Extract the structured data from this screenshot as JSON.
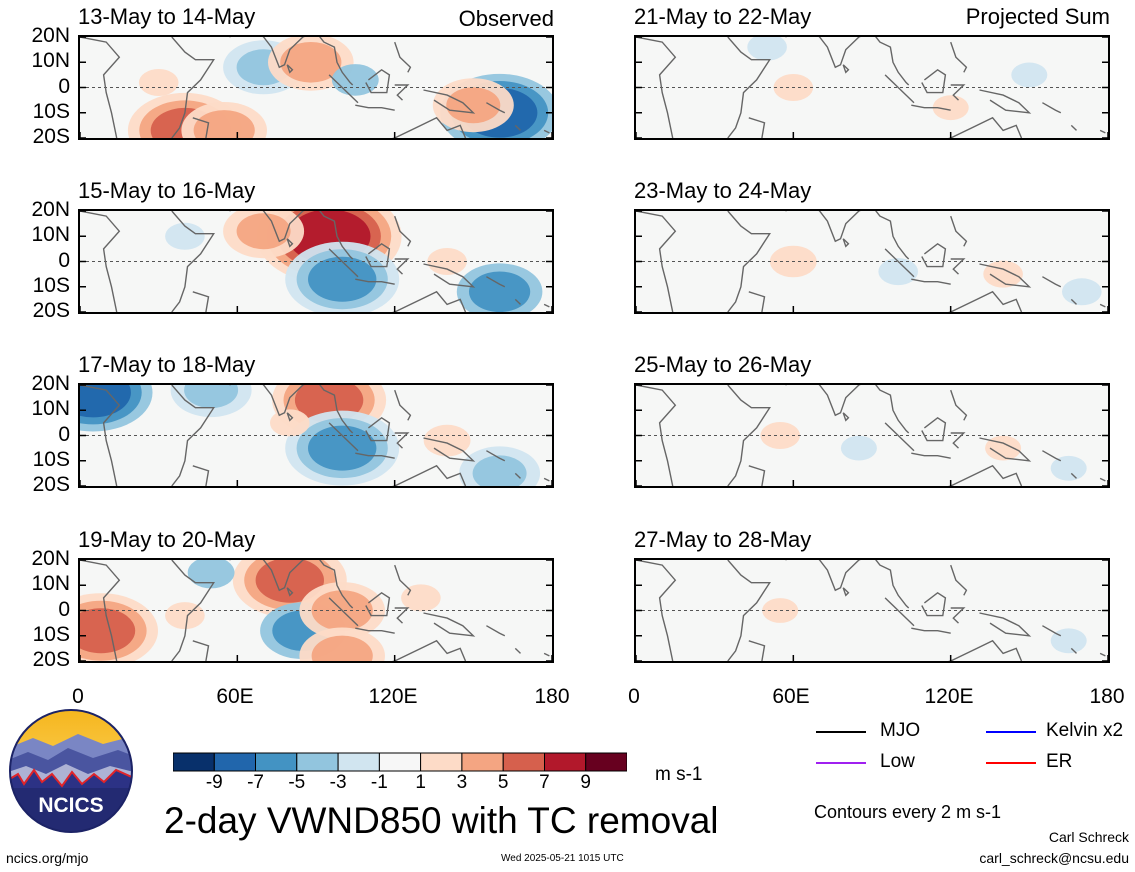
{
  "figure": {
    "title": "2-day VWND850 with TC removal",
    "units": "m s-1",
    "contour_note": "Contours every 2 m s-1",
    "author": "Carl Schreck",
    "email": "carl_schreck@ncsu.edu",
    "website": "ncics.org/mjo",
    "timestamp": "Wed 2025-05-21 1015 UTC",
    "logo_text": "NCICS"
  },
  "columns": {
    "left_label": "Observed",
    "right_label": "Projected Sum"
  },
  "lat_ticks": [
    "20N",
    "10N",
    "0",
    "10S",
    "20S"
  ],
  "lon_ticks": [
    "0",
    "60E",
    "120E",
    "180"
  ],
  "colorbar": {
    "ticks": [
      "-9",
      "-7",
      "-5",
      "-3",
      "-1",
      "1",
      "3",
      "5",
      "7",
      "9"
    ],
    "colors": [
      "#08306b",
      "#2166ac",
      "#4393c3",
      "#92c5de",
      "#d1e5f0",
      "#f7f7f7",
      "#fddbc7",
      "#f4a582",
      "#d6604d",
      "#b2182b",
      "#67001f"
    ]
  },
  "legend": [
    {
      "label": "MJO",
      "color": "#000000"
    },
    {
      "label": "Kelvin x2",
      "color": "#0000ff"
    },
    {
      "label": "Low",
      "color": "#a020f0"
    },
    {
      "label": "ER",
      "color": "#ff0000"
    }
  ],
  "chart_data": {
    "type": "heatmap",
    "variable": "2-day VWND850 with TC removal",
    "units": "m s-1",
    "x_range": [
      0,
      180
    ],
    "y_range": [
      -20,
      20
    ],
    "panels": [
      {
        "column": "Observed",
        "period": "13-May to 14-May",
        "anomalies": [
          {
            "lon": 40,
            "lat": -17,
            "v": 6
          },
          {
            "lon": 55,
            "lat": -17,
            "v": 5
          },
          {
            "lon": 70,
            "lat": 8,
            "v": -4
          },
          {
            "lon": 88,
            "lat": 10,
            "v": 5
          },
          {
            "lon": 105,
            "lat": 3,
            "v": -3
          },
          {
            "lon": 160,
            "lat": -10,
            "v": -7
          },
          {
            "lon": 150,
            "lat": -7,
            "v": 4
          },
          {
            "lon": 30,
            "lat": 2,
            "v": 2
          }
        ]
      },
      {
        "column": "Projected Sum",
        "period": "21-May to 22-May",
        "anomalies": [
          {
            "lon": 60,
            "lat": 0,
            "v": 2
          },
          {
            "lon": 50,
            "lat": 16,
            "v": -2
          },
          {
            "lon": 150,
            "lat": 5,
            "v": -1.5
          },
          {
            "lon": 120,
            "lat": -8,
            "v": 1.5
          }
        ]
      },
      {
        "column": "Observed",
        "period": "15-May to 16-May",
        "anomalies": [
          {
            "lon": 95,
            "lat": 10,
            "v": 8
          },
          {
            "lon": 100,
            "lat": -7,
            "v": -6
          },
          {
            "lon": 160,
            "lat": -12,
            "v": -5
          },
          {
            "lon": 70,
            "lat": 12,
            "v": 4
          },
          {
            "lon": 140,
            "lat": 0,
            "v": 2
          },
          {
            "lon": 40,
            "lat": 10,
            "v": -2
          }
        ]
      },
      {
        "column": "Projected Sum",
        "period": "23-May to 24-May",
        "anomalies": [
          {
            "lon": 60,
            "lat": 0,
            "v": 3
          },
          {
            "lon": 100,
            "lat": -4,
            "v": -2
          },
          {
            "lon": 140,
            "lat": -5,
            "v": 2
          },
          {
            "lon": 170,
            "lat": -12,
            "v": -2
          }
        ]
      },
      {
        "column": "Observed",
        "period": "17-May to 18-May",
        "anomalies": [
          {
            "lon": 5,
            "lat": 17,
            "v": -7
          },
          {
            "lon": 95,
            "lat": 14,
            "v": 6
          },
          {
            "lon": 100,
            "lat": -5,
            "v": -6
          },
          {
            "lon": 140,
            "lat": -2,
            "v": 3
          },
          {
            "lon": 160,
            "lat": -15,
            "v": -4
          },
          {
            "lon": 50,
            "lat": 18,
            "v": -4
          },
          {
            "lon": 80,
            "lat": 5,
            "v": 2
          }
        ]
      },
      {
        "column": "Projected Sum",
        "period": "25-May to 26-May",
        "anomalies": [
          {
            "lon": 55,
            "lat": 0,
            "v": 2
          },
          {
            "lon": 85,
            "lat": -5,
            "v": -1.5
          },
          {
            "lon": 140,
            "lat": -5,
            "v": 1.5
          },
          {
            "lon": 165,
            "lat": -13,
            "v": -1.5
          }
        ]
      },
      {
        "column": "Observed",
        "period": "19-May to 20-May",
        "anomalies": [
          {
            "lon": 8,
            "lat": -8,
            "v": 6
          },
          {
            "lon": 80,
            "lat": 12,
            "v": 6
          },
          {
            "lon": 85,
            "lat": -8,
            "v": -5
          },
          {
            "lon": 100,
            "lat": 0,
            "v": 5
          },
          {
            "lon": 100,
            "lat": -18,
            "v": 5
          },
          {
            "lon": 50,
            "lat": 15,
            "v": -3
          },
          {
            "lon": 130,
            "lat": 5,
            "v": 2
          },
          {
            "lon": 40,
            "lat": -2,
            "v": 2
          }
        ]
      },
      {
        "column": "Projected Sum",
        "period": "27-May to 28-May",
        "anomalies": [
          {
            "lon": 55,
            "lat": 0,
            "v": 1.5
          },
          {
            "lon": 165,
            "lat": -12,
            "v": -1.5
          },
          {
            "lon": 100,
            "lat": 10,
            "v": -1
          }
        ]
      }
    ]
  }
}
